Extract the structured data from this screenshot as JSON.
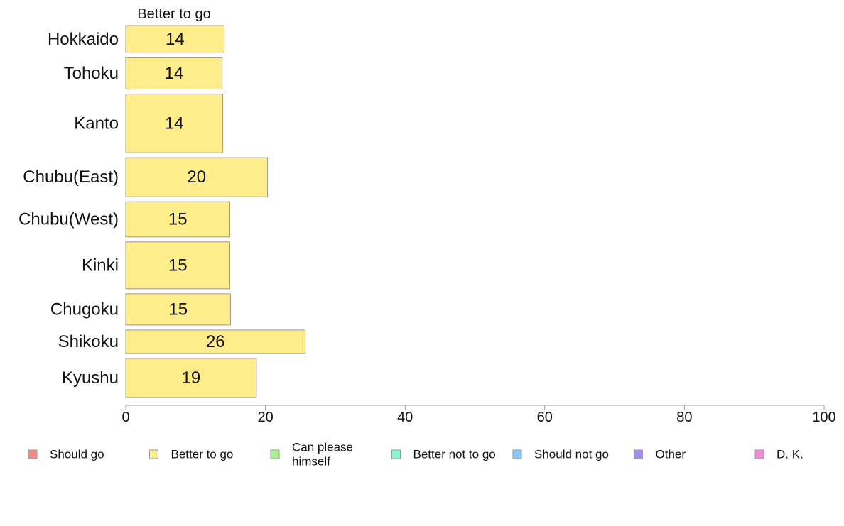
{
  "chart_data": {
    "type": "bar",
    "orientation": "horizontal",
    "stacked": true,
    "series_header": "Better to go",
    "categories": [
      "Hokkaido",
      "Tohoku",
      "Kanto",
      "Chubu(East)",
      "Chubu(West)",
      "Kinki",
      "Chugoku",
      "Shikoku",
      "Kyushu"
    ],
    "series": [
      {
        "name": "Better to go",
        "color": "#ffec8a",
        "values": [
          14.1,
          13.8,
          13.9,
          20.3,
          14.9,
          14.9,
          15.0,
          25.7,
          18.7
        ],
        "labels": [
          "14",
          "14",
          "14",
          "20",
          "15",
          "15",
          "15",
          "26",
          "19"
        ]
      }
    ],
    "category_weights": [
      0.7,
      0.8,
      1.5,
      1.0,
      0.9,
      1.2,
      0.8,
      0.6,
      1.0
    ],
    "xlim": [
      0,
      100
    ],
    "xticks": [
      0,
      20,
      40,
      60,
      80,
      100
    ],
    "grid": false,
    "legend_position": "bottom",
    "legend": [
      {
        "label": "Should go",
        "color": "#f58a8a"
      },
      {
        "label": "Better to go",
        "color": "#ffec8a"
      },
      {
        "label": "Can please himself",
        "color": "#a6f58a"
      },
      {
        "label": "Better not to go",
        "color": "#8af5c9"
      },
      {
        "label": "Should not go",
        "color": "#8ac9f5"
      },
      {
        "label": "Other",
        "color": "#a68af5"
      },
      {
        "label": "D. K.",
        "color": "#f58ae0"
      }
    ],
    "bar_border_color": "#999999",
    "axis_color": "#999999"
  }
}
